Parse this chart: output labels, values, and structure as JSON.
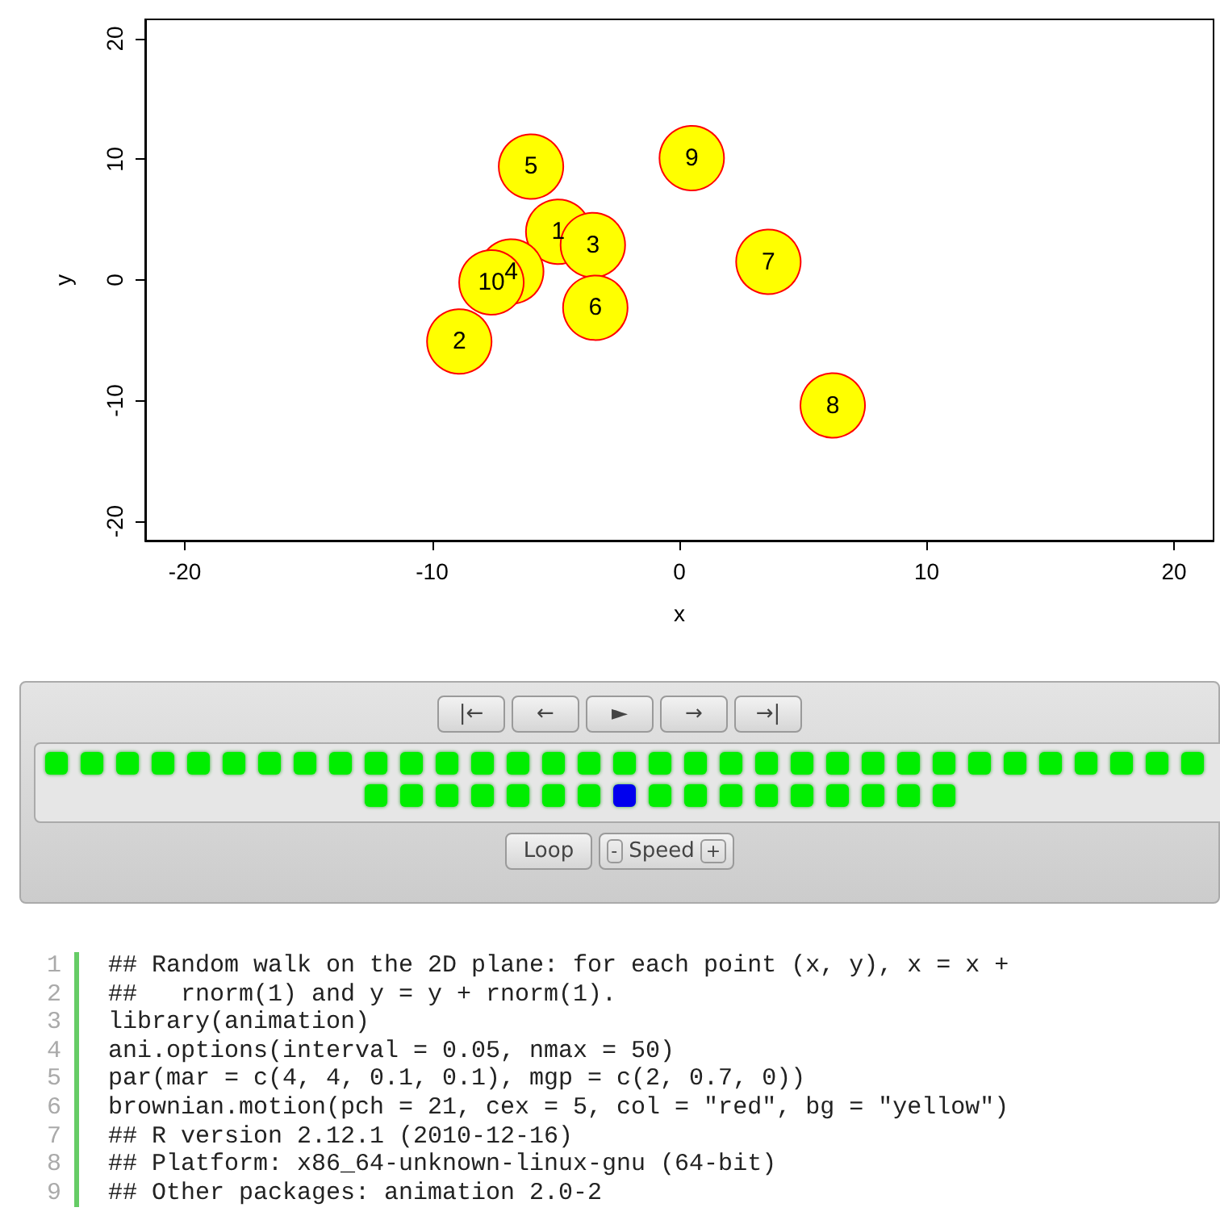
{
  "chart_data": {
    "type": "scatter",
    "xlabel": "x",
    "ylabel": "y",
    "series": [
      {
        "name": "1",
        "color": "#ffff00",
        "x": [
          -4.9
        ],
        "values": [
          4.0
        ]
      },
      {
        "name": "2",
        "color": "#ffff00",
        "x": [
          -8.9
        ],
        "values": [
          -5.1
        ]
      },
      {
        "name": "3",
        "color": "#ffff00",
        "x": [
          -3.5
        ],
        "values": [
          2.9
        ]
      },
      {
        "name": "4",
        "color": "#ffff00",
        "x": [
          -6.8
        ],
        "values": [
          0.7
        ]
      },
      {
        "name": "5",
        "color": "#ffff00",
        "x": [
          -6.0
        ],
        "values": [
          9.4
        ]
      },
      {
        "name": "6",
        "color": "#ffff00",
        "x": [
          -3.4
        ],
        "values": [
          -2.3
        ]
      },
      {
        "name": "7",
        "color": "#ffff00",
        "x": [
          3.6
        ],
        "values": [
          1.5
        ]
      },
      {
        "name": "8",
        "color": "#ffff00",
        "x": [
          6.2
        ],
        "values": [
          -10.4
        ]
      },
      {
        "name": "9",
        "color": "#ffff00",
        "x": [
          0.5
        ],
        "values": [
          10.1
        ]
      },
      {
        "name": "10",
        "color": "#ffff00",
        "x": [
          -7.6
        ],
        "values": [
          -0.2
        ]
      }
    ],
    "xlim": [
      -21.6,
      21.6
    ],
    "ylim": [
      -21.6,
      21.6
    ],
    "xticks": [
      -20,
      -10,
      0,
      10,
      20
    ],
    "yticks": [
      -20,
      -10,
      0,
      10,
      20
    ],
    "marker": "circle",
    "grid": false,
    "legend": false,
    "annotations": [
      "## Random walk on the 2D plane: for each point (x, y), x = x +",
      "##   rnorm(1) and y = y + rnorm(1).",
      "library(animation)",
      "ani.options(interval = 0.05, nmax = 50)",
      "par(mar = c(4, 4, 0.1, 0.1), mgp = c(2, 0.7, 0))",
      "brownian.motion(pch = 21, cex = 5, col = \"red\", bg = \"yellow\")",
      "## R version 2.12.1 (2010-12-16)",
      "## Platform: x86_64-unknown-linux-gnu (64-bit)",
      "## Other packages: animation 2.0-2",
      "1",
      "2",
      "3",
      "4",
      "5",
      "6",
      "7",
      "8",
      "9",
      "|←",
      "←",
      "►",
      "→",
      "→|",
      "Loop",
      "-",
      "Speed",
      "+"
    ]
  }
}
